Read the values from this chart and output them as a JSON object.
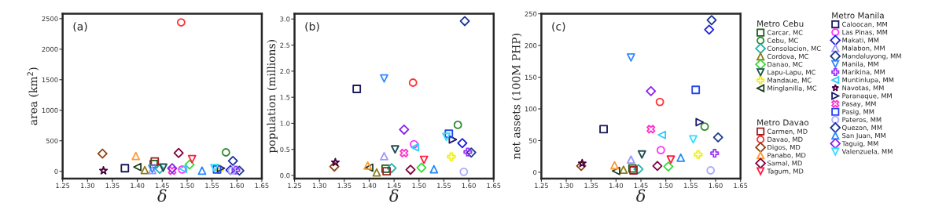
{
  "chart_data": [
    {
      "type": "scatter",
      "xlabel": "δ",
      "ylabel": "area (km$^{2}$)",
      "annotations": [
        "(a)"
      ],
      "xlim": [
        1.25,
        1.65
      ],
      "ylim": [
        -120,
        2580
      ],
      "xticks": [
        {
          "value": 1.25,
          "label": "1.25"
        },
        {
          "value": 1.3,
          "label": "1.30"
        },
        {
          "value": 1.35,
          "label": "1.35"
        },
        {
          "value": 1.4,
          "label": "1.40"
        },
        {
          "value": 1.45,
          "label": "1.45"
        },
        {
          "value": 1.5,
          "label": "1.50"
        },
        {
          "value": 1.55,
          "label": "1.55"
        },
        {
          "value": 1.6,
          "label": "1.60"
        },
        {
          "value": 1.65,
          "label": "1.65"
        }
      ],
      "yticks": [
        0,
        500,
        1000,
        1500,
        2000,
        2500
      ],
      "grid": false,
      "series": [
        {
          "color": "#1e5a1e",
          "marker": "square",
          "x": [
            1.433
          ],
          "values": [
            120
          ]
        },
        {
          "color": "#2e8b2e",
          "marker": "circle",
          "x": [
            1.578
          ],
          "values": [
            310
          ]
        },
        {
          "color": "#20b2aa",
          "marker": "diamond",
          "x": [
            1.445
          ],
          "values": [
            40
          ]
        },
        {
          "color": "#8b7d1a",
          "marker": "triangle",
          "x": [
            1.415
          ],
          "values": [
            20
          ]
        },
        {
          "color": "#33dd33",
          "marker": "diamond",
          "x": [
            1.505
          ],
          "values": [
            110
          ]
        },
        {
          "color": "#1f4f4f",
          "marker": "triangle-down",
          "x": [
            1.452
          ],
          "values": [
            60
          ]
        },
        {
          "color": "#f0f010",
          "marker": "plus",
          "x": [
            1.565
          ],
          "values": [
            30
          ]
        },
        {
          "color": "#1e3c1e",
          "marker": "triangle-left",
          "x": [
            1.4
          ],
          "values": [
            70
          ]
        },
        {
          "color": "#a01e1e",
          "marker": "square",
          "x": [
            1.435
          ],
          "values": [
            160
          ]
        },
        {
          "color": "#ff3030",
          "marker": "circle",
          "x": [
            1.488
          ],
          "values": [
            2440
          ]
        },
        {
          "color": "#8b4513",
          "marker": "diamond",
          "x": [
            1.33
          ],
          "values": [
            290
          ]
        },
        {
          "color": "#ff9933",
          "marker": "triangle",
          "x": [
            1.397
          ],
          "values": [
            250
          ]
        },
        {
          "color": "#800040",
          "marker": "diamond",
          "x": [
            1.483
          ],
          "values": [
            300
          ]
        },
        {
          "color": "#ff2040",
          "marker": "triangle-down",
          "x": [
            1.51
          ],
          "values": [
            200
          ]
        },
        {
          "color": "#1a1a5a",
          "marker": "square",
          "x": [
            1.375
          ],
          "values": [
            50
          ]
        },
        {
          "color": "#ff33ff",
          "marker": "circle",
          "x": [
            1.49
          ],
          "values": [
            30
          ]
        },
        {
          "color": "#2222dd",
          "marker": "diamond",
          "x": [
            1.587
          ],
          "values": [
            20
          ]
        },
        {
          "color": "#9999ff",
          "marker": "triangle",
          "x": [
            1.43
          ],
          "values": [
            20
          ]
        },
        {
          "color": "#1a3a8a",
          "marker": "diamond",
          "x": [
            1.605
          ],
          "values": [
            10
          ]
        },
        {
          "color": "#3388ff",
          "marker": "triangle-down",
          "x": [
            1.43
          ],
          "values": [
            40
          ]
        },
        {
          "color": "#9933ff",
          "marker": "plus",
          "x": [
            1.598
          ],
          "values": [
            20
          ]
        },
        {
          "color": "#33ccff",
          "marker": "triangle-left",
          "x": [
            1.492
          ],
          "values": [
            40
          ]
        },
        {
          "color": "#4b0040",
          "marker": "star",
          "x": [
            1.332
          ],
          "values": [
            10
          ]
        },
        {
          "color": "#1a1a6a",
          "marker": "triangle-right",
          "x": [
            1.568
          ],
          "values": [
            50
          ]
        },
        {
          "color": "#ff33cc",
          "marker": "x",
          "x": [
            1.47
          ],
          "values": [
            10
          ]
        },
        {
          "color": "#2244ee",
          "marker": "square",
          "x": [
            1.56
          ],
          "values": [
            30
          ]
        },
        {
          "color": "#aaaaff",
          "marker": "circle",
          "x": [
            1.59
          ],
          "values": [
            10
          ]
        },
        {
          "color": "#1a3399",
          "marker": "diamond",
          "x": [
            1.592
          ],
          "values": [
            170
          ]
        },
        {
          "color": "#2288ff",
          "marker": "triangle",
          "x": [
            1.53
          ],
          "values": [
            10
          ]
        },
        {
          "color": "#8822ee",
          "marker": "diamond",
          "x": [
            1.47
          ],
          "values": [
            50
          ]
        },
        {
          "color": "#33ddff",
          "marker": "triangle-down",
          "x": [
            1.555
          ],
          "values": [
            50
          ]
        }
      ]
    },
    {
      "type": "scatter",
      "xlabel": "δ",
      "ylabel": "population (millions)",
      "annotations": [
        "(b)"
      ],
      "xlim": [
        1.25,
        1.65
      ],
      "ylim": [
        -0.06,
        3.1
      ],
      "xticks": [
        {
          "value": 1.25,
          "label": "1.25"
        },
        {
          "value": 1.3,
          "label": "1.30"
        },
        {
          "value": 1.35,
          "label": "1.35"
        },
        {
          "value": 1.4,
          "label": "1.40"
        },
        {
          "value": 1.45,
          "label": "1.45"
        },
        {
          "value": 1.5,
          "label": "1.50"
        },
        {
          "value": 1.55,
          "label": "1.55"
        },
        {
          "value": 1.6,
          "label": "1.60"
        },
        {
          "value": 1.65,
          "label": "1.65"
        }
      ],
      "yticks": [
        {
          "value": 0,
          "label": "0.0"
        },
        0.5,
        {
          "value": 1,
          "label": "1.0"
        },
        1.5,
        {
          "value": 2,
          "label": "2.0"
        },
        2.5,
        {
          "value": 3,
          "label": "3.0"
        }
      ],
      "grid": false,
      "series": [
        {
          "color": "#1e5a1e",
          "marker": "square",
          "x": [
            1.433
          ],
          "values": [
            0.13
          ]
        },
        {
          "color": "#2e8b2e",
          "marker": "circle",
          "x": [
            1.578
          ],
          "values": [
            0.97
          ]
        },
        {
          "color": "#20b2aa",
          "marker": "diamond",
          "x": [
            1.445
          ],
          "values": [
            0.14
          ]
        },
        {
          "color": "#8b7d1a",
          "marker": "triangle",
          "x": [
            1.415
          ],
          "values": [
            0.06
          ]
        },
        {
          "color": "#33dd33",
          "marker": "diamond",
          "x": [
            1.505
          ],
          "values": [
            0.15
          ]
        },
        {
          "color": "#1f4f4f",
          "marker": "triangle-down",
          "x": [
            1.452
          ],
          "values": [
            0.5
          ]
        },
        {
          "color": "#f0f010",
          "marker": "plus",
          "x": [
            1.565
          ],
          "values": [
            0.36
          ]
        },
        {
          "color": "#1e3c1e",
          "marker": "triangle-left",
          "x": [
            1.4
          ],
          "values": [
            0.15
          ]
        },
        {
          "color": "#a01e1e",
          "marker": "square",
          "x": [
            1.435
          ],
          "values": [
            0.08
          ]
        },
        {
          "color": "#ff3030",
          "marker": "circle",
          "x": [
            1.488
          ],
          "values": [
            1.78
          ]
        },
        {
          "color": "#8b4513",
          "marker": "diamond",
          "x": [
            1.33
          ],
          "values": [
            0.17
          ]
        },
        {
          "color": "#ff9933",
          "marker": "triangle",
          "x": [
            1.397
          ],
          "values": [
            0.19
          ]
        },
        {
          "color": "#800040",
          "marker": "diamond",
          "x": [
            1.483
          ],
          "values": [
            0.11
          ]
        },
        {
          "color": "#ff2040",
          "marker": "triangle-down",
          "x": [
            1.51
          ],
          "values": [
            0.3
          ]
        },
        {
          "color": "#1a1a5a",
          "marker": "square",
          "x": [
            1.375
          ],
          "values": [
            1.66
          ]
        },
        {
          "color": "#ff33ff",
          "marker": "circle",
          "x": [
            1.49
          ],
          "values": [
            0.6
          ]
        },
        {
          "color": "#2222dd",
          "marker": "diamond",
          "x": [
            1.587
          ],
          "values": [
            0.62
          ]
        },
        {
          "color": "#9999ff",
          "marker": "triangle",
          "x": [
            1.43
          ],
          "values": [
            0.37
          ]
        },
        {
          "color": "#1a3a8a",
          "marker": "diamond",
          "x": [
            1.605
          ],
          "values": [
            0.44
          ]
        },
        {
          "color": "#3388ff",
          "marker": "triangle-down",
          "x": [
            1.43
          ],
          "values": [
            1.86
          ]
        },
        {
          "color": "#9933ff",
          "marker": "plus",
          "x": [
            1.598
          ],
          "values": [
            0.45
          ]
        },
        {
          "color": "#33ccff",
          "marker": "triangle-left",
          "x": [
            1.492
          ],
          "values": [
            0.54
          ]
        },
        {
          "color": "#4b0040",
          "marker": "star",
          "x": [
            1.332
          ],
          "values": [
            0.25
          ]
        },
        {
          "color": "#1a1a6a",
          "marker": "triangle-right",
          "x": [
            1.568
          ],
          "values": [
            0.69
          ]
        },
        {
          "color": "#ff33cc",
          "marker": "x",
          "x": [
            1.47
          ],
          "values": [
            0.43
          ]
        },
        {
          "color": "#2244ee",
          "marker": "square",
          "x": [
            1.56
          ],
          "values": [
            0.8
          ]
        },
        {
          "color": "#aaaaff",
          "marker": "circle",
          "x": [
            1.59
          ],
          "values": [
            0.07
          ]
        },
        {
          "color": "#1a3399",
          "marker": "diamond",
          "x": [
            1.592
          ],
          "values": [
            2.96
          ]
        },
        {
          "color": "#2288ff",
          "marker": "triangle",
          "x": [
            1.53
          ],
          "values": [
            0.12
          ]
        },
        {
          "color": "#8822ee",
          "marker": "diamond",
          "x": [
            1.47
          ],
          "values": [
            0.88
          ]
        },
        {
          "color": "#33ddff",
          "marker": "triangle-down",
          "x": [
            1.555
          ],
          "values": [
            0.74
          ]
        }
      ]
    },
    {
      "type": "scatter",
      "xlabel": "δ",
      "ylabel": "net assets (100M PHP)",
      "annotations": [
        "(c)",
        "Metro Cebu",
        "Metro Davao",
        "Metro Manila"
      ],
      "xlim": [
        1.25,
        1.65
      ],
      "ylim": [
        -10,
        250
      ],
      "legend": "right",
      "xticks": [
        {
          "value": 1.25,
          "label": "1.25"
        },
        {
          "value": 1.3,
          "label": "1.30"
        },
        {
          "value": 1.35,
          "label": "1.35"
        },
        {
          "value": 1.4,
          "label": "1.40"
        },
        {
          "value": 1.45,
          "label": "1.45"
        },
        {
          "value": 1.5,
          "label": "1.50"
        },
        {
          "value": 1.55,
          "label": "1.55"
        },
        {
          "value": 1.6,
          "label": "1.60"
        },
        {
          "value": 1.65,
          "label": "1.65"
        }
      ],
      "yticks": [
        0,
        50,
        100,
        150,
        200,
        250
      ],
      "grid": false,
      "series": [
        {
          "name": "Carcar, MC",
          "color": "#1e5a1e",
          "marker": "square",
          "x": [
            1.433
          ],
          "values": [
            6
          ]
        },
        {
          "name": "Cebu, MC",
          "color": "#2e8b2e",
          "marker": "circle",
          "x": [
            1.578
          ],
          "values": [
            72
          ]
        },
        {
          "name": "Consolacion, MC",
          "color": "#20b2aa",
          "marker": "diamond",
          "x": [
            1.445
          ],
          "values": [
            5
          ]
        },
        {
          "name": "Cordova, MC",
          "color": "#8b7d1a",
          "marker": "triangle",
          "x": [
            1.415
          ],
          "values": [
            4
          ]
        },
        {
          "name": "Danao, MC",
          "color": "#33dd33",
          "marker": "diamond",
          "x": [
            1.505
          ],
          "values": [
            9
          ]
        },
        {
          "name": "Lapu-Lapu, MC",
          "color": "#1f4f4f",
          "marker": "triangle-down",
          "x": [
            1.452
          ],
          "values": [
            28
          ]
        },
        {
          "name": "Mandaue, MC",
          "color": "#f0f010",
          "marker": "plus",
          "x": [
            1.565
          ],
          "values": [
            28
          ]
        },
        {
          "name": "Minglanilla, MC",
          "color": "#1e3c1e",
          "marker": "triangle-left",
          "x": [
            1.4
          ],
          "values": [
            2
          ]
        },
        {
          "name": "Carmen, MD",
          "color": "#a01e1e",
          "marker": "square",
          "x": [
            1.435
          ],
          "values": [
            3
          ]
        },
        {
          "name": "Davao, MD",
          "color": "#ff3030",
          "marker": "circle",
          "x": [
            1.488
          ],
          "values": [
            111
          ]
        },
        {
          "name": "Digos, MD",
          "color": "#8b4513",
          "marker": "diamond",
          "x": [
            1.33
          ],
          "values": [
            10
          ]
        },
        {
          "name": "Panabo, MD",
          "color": "#ff9933",
          "marker": "triangle",
          "x": [
            1.397
          ],
          "values": [
            11
          ]
        },
        {
          "name": "Samal, MD",
          "color": "#800040",
          "marker": "diamond",
          "x": [
            1.483
          ],
          "values": [
            10
          ]
        },
        {
          "name": "Tagum, MD",
          "color": "#ff2040",
          "marker": "triangle-down",
          "x": [
            1.51
          ],
          "values": [
            20
          ]
        },
        {
          "name": "Caloocan, MM",
          "color": "#1a1a5a",
          "marker": "square",
          "x": [
            1.375
          ],
          "values": [
            68
          ]
        },
        {
          "name": "Las Pinas, MM",
          "color": "#ff33ff",
          "marker": "circle",
          "x": [
            1.49
          ],
          "values": [
            35
          ]
        },
        {
          "name": "Makati, MM",
          "color": "#2222dd",
          "marker": "diamond",
          "x": [
            1.587
          ],
          "values": [
            225
          ]
        },
        {
          "name": "Malabon, MM",
          "color": "#9999ff",
          "marker": "triangle",
          "x": [
            1.43
          ],
          "values": [
            20
          ]
        },
        {
          "name": "Mandaluyong, MM",
          "color": "#1a3a8a",
          "marker": "diamond",
          "x": [
            1.605
          ],
          "values": [
            55
          ]
        },
        {
          "name": "Manila, MM",
          "color": "#3388ff",
          "marker": "triangle-down",
          "x": [
            1.43
          ],
          "values": [
            181
          ]
        },
        {
          "name": "Marikina, MM",
          "color": "#9933ff",
          "marker": "plus",
          "x": [
            1.598
          ],
          "values": [
            30
          ]
        },
        {
          "name": "Muntinlupa, MM",
          "color": "#33ccff",
          "marker": "triangle-left",
          "x": [
            1.492
          ],
          "values": [
            59
          ]
        },
        {
          "name": "Navotas, MM",
          "color": "#4b0040",
          "marker": "star",
          "x": [
            1.332
          ],
          "values": [
            14
          ]
        },
        {
          "name": "Paranaque, MM",
          "color": "#1a1a6a",
          "marker": "triangle-right",
          "x": [
            1.568
          ],
          "values": [
            79
          ]
        },
        {
          "name": "Pasay, MM",
          "color": "#ff33cc",
          "marker": "x",
          "x": [
            1.47
          ],
          "values": [
            68
          ]
        },
        {
          "name": "Pasig, MM",
          "color": "#2244ee",
          "marker": "square",
          "x": [
            1.56
          ],
          "values": [
            130
          ]
        },
        {
          "name": "Pateros, MM",
          "color": "#aaaaff",
          "marker": "circle",
          "x": [
            1.59
          ],
          "values": [
            3
          ]
        },
        {
          "name": "Quezon, MM",
          "color": "#1a3399",
          "marker": "diamond",
          "x": [
            1.592
          ],
          "values": [
            240
          ]
        },
        {
          "name": "San Juan, MM",
          "color": "#2288ff",
          "marker": "triangle",
          "x": [
            1.53
          ],
          "values": [
            23
          ]
        },
        {
          "name": "Taguig, MM",
          "color": "#8822ee",
          "marker": "diamond",
          "x": [
            1.47
          ],
          "values": [
            128
          ]
        },
        {
          "name": "Valenzuela, MM",
          "color": "#33ddff",
          "marker": "triangle-down",
          "x": [
            1.555
          ],
          "values": [
            52
          ]
        }
      ]
    }
  ]
}
